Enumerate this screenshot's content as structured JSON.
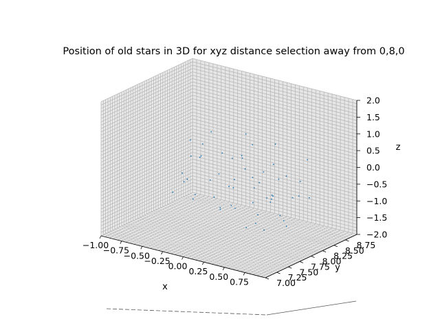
{
  "chart_data": {
    "type": "scatter",
    "projection": "3d",
    "title": "Position of old stars in 3D for xyz distance selection away from 0,8,0",
    "xlabel": "x",
    "ylabel": "y",
    "zlabel": "z",
    "xlim": [
      -1.0,
      1.0
    ],
    "ylim": [
      7.0,
      9.0
    ],
    "zlim": [
      -2.0,
      2.0
    ],
    "xticks": [
      "−1.00",
      "−0.75",
      "−0.50",
      "−0.25",
      "0.00",
      "0.25",
      "0.50",
      "0.75"
    ],
    "yticks": [
      "7.00",
      "7.25",
      "7.50",
      "7.75",
      "8.00",
      "8.25",
      "8.50",
      "8.75"
    ],
    "zticks": [
      "−2.0",
      "−1.5",
      "−1.0",
      "−0.5",
      "0.0",
      "0.5",
      "1.0",
      "1.5",
      "2.0"
    ],
    "grid": true,
    "marker_color": "#1f77b4",
    "points": [
      {
        "x": -0.72,
        "y": 8.45,
        "z": 0.1
      },
      {
        "x": -0.64,
        "y": 8.32,
        "z": -0.25
      },
      {
        "x": -0.55,
        "y": 8.6,
        "z": 0.35
      },
      {
        "x": -0.48,
        "y": 7.95,
        "z": -0.6
      },
      {
        "x": -0.41,
        "y": 8.1,
        "z": 0.0
      },
      {
        "x": -0.36,
        "y": 8.72,
        "z": -0.4
      },
      {
        "x": -0.3,
        "y": 7.8,
        "z": -0.85
      },
      {
        "x": -0.22,
        "y": 8.25,
        "z": 0.15
      },
      {
        "x": -0.15,
        "y": 8.05,
        "z": -0.3
      },
      {
        "x": -0.1,
        "y": 8.55,
        "z": 0.6
      },
      {
        "x": -0.05,
        "y": 7.9,
        "z": -1.2
      },
      {
        "x": 0.0,
        "y": 8.0,
        "z": -0.55
      },
      {
        "x": 0.03,
        "y": 8.3,
        "z": -0.2
      },
      {
        "x": 0.06,
        "y": 7.7,
        "z": -0.95
      },
      {
        "x": 0.08,
        "y": 8.15,
        "z": 0.25
      },
      {
        "x": 0.12,
        "y": 8.45,
        "z": -0.65
      },
      {
        "x": 0.15,
        "y": 7.85,
        "z": -0.15
      },
      {
        "x": 0.18,
        "y": 8.2,
        "z": -1.05
      },
      {
        "x": 0.22,
        "y": 8.62,
        "z": 0.45
      },
      {
        "x": 0.25,
        "y": 7.6,
        "z": -0.7
      },
      {
        "x": 0.28,
        "y": 8.05,
        "z": -0.45
      },
      {
        "x": 0.32,
        "y": 8.4,
        "z": 0.05
      },
      {
        "x": 0.35,
        "y": 7.75,
        "z": -1.4
      },
      {
        "x": 0.38,
        "y": 8.25,
        "z": -0.85
      },
      {
        "x": 0.42,
        "y": 8.5,
        "z": -0.3
      },
      {
        "x": 0.45,
        "y": 7.95,
        "z": 0.2
      },
      {
        "x": 0.48,
        "y": 8.7,
        "z": -0.55
      },
      {
        "x": 0.52,
        "y": 7.65,
        "z": -1.1
      },
      {
        "x": 0.55,
        "y": 8.1,
        "z": -0.05
      },
      {
        "x": 0.58,
        "y": 8.35,
        "z": -0.75
      },
      {
        "x": 0.62,
        "y": 7.85,
        "z": -0.35
      },
      {
        "x": 0.65,
        "y": 8.55,
        "z": 0.3
      },
      {
        "x": 0.7,
        "y": 8.0,
        "z": -1.3
      },
      {
        "x": 0.74,
        "y": 8.2,
        "z": -0.5
      },
      {
        "x": -0.6,
        "y": 7.85,
        "z": -1.0
      },
      {
        "x": -0.52,
        "y": 8.15,
        "z": -1.35
      },
      {
        "x": -0.45,
        "y": 8.4,
        "z": -0.9
      },
      {
        "x": -0.38,
        "y": 7.7,
        "z": -0.45
      },
      {
        "x": -0.28,
        "y": 8.6,
        "z": -1.15
      },
      {
        "x": -0.2,
        "y": 7.75,
        "z": 0.4
      },
      {
        "x": -0.12,
        "y": 8.35,
        "z": -1.5
      },
      {
        "x": 0.1,
        "y": 8.65,
        "z": -1.25
      },
      {
        "x": 0.2,
        "y": 7.92,
        "z": 0.55
      },
      {
        "x": 0.3,
        "y": 8.58,
        "z": -1.6
      },
      {
        "x": 0.4,
        "y": 7.8,
        "z": 0.1
      },
      {
        "x": 0.5,
        "y": 8.3,
        "z": -1.45
      },
      {
        "x": 0.6,
        "y": 8.68,
        "z": -0.95
      },
      {
        "x": 0.68,
        "y": 7.72,
        "z": -0.2
      },
      {
        "x": -0.68,
        "y": 8.2,
        "z": -0.7
      },
      {
        "x": -0.33,
        "y": 8.02,
        "z": 0.5
      },
      {
        "x": 0.02,
        "y": 8.48,
        "z": 0.4
      },
      {
        "x": 0.36,
        "y": 8.12,
        "z": -1.7
      },
      {
        "x": 0.56,
        "y": 7.9,
        "z": -0.6
      },
      {
        "x": -0.08,
        "y": 7.82,
        "z": -0.8
      },
      {
        "x": 0.14,
        "y": 8.38,
        "z": -1.55
      }
    ]
  }
}
